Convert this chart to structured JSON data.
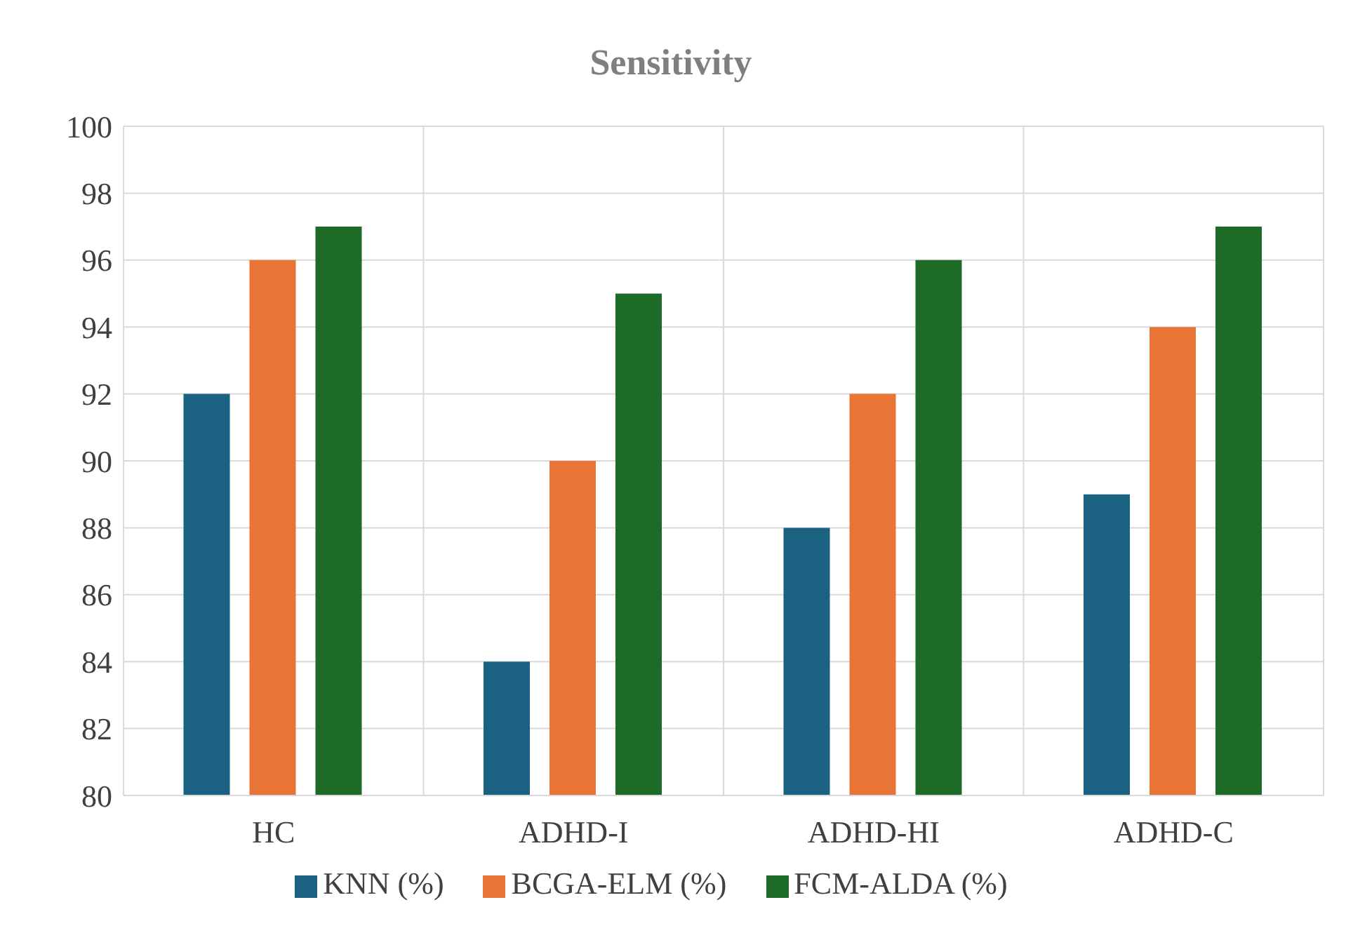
{
  "chart_data": {
    "type": "bar",
    "title": "Sensitivity",
    "categories": [
      "HC",
      "ADHD-I",
      "ADHD-HI",
      "ADHD-C"
    ],
    "series": [
      {
        "name": "KNN (%)",
        "color": "#1a6182",
        "values": [
          92,
          84,
          88,
          89
        ]
      },
      {
        "name": "BCGA-ELM (%)",
        "color": "#e87435",
        "values": [
          96,
          90,
          92,
          94
        ]
      },
      {
        "name": "FCM-ALDA (%)",
        "color": "#1e6b28",
        "values": [
          97,
          95,
          96,
          97
        ]
      }
    ],
    "ylim": [
      80,
      100
    ],
    "yticks": [
      80,
      82,
      84,
      86,
      88,
      90,
      92,
      94,
      96,
      98,
      100
    ],
    "grid": true,
    "legend": "bottom"
  }
}
